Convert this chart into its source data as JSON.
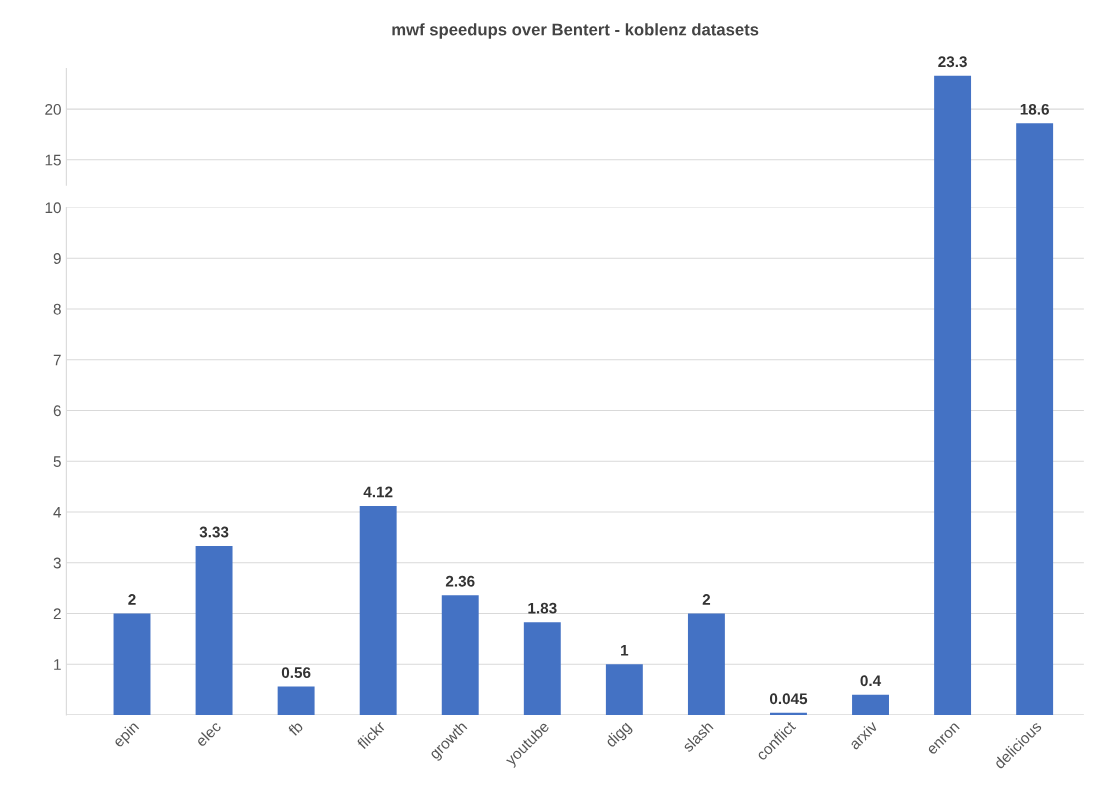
{
  "chart_data": [
    {
      "type": "bar",
      "title": "mwf speedups over Bentert - koblenz datasets",
      "categories": [
        null,
        null,
        null,
        null,
        null,
        null,
        null,
        null,
        null,
        null,
        null,
        null
      ],
      "values": [
        null,
        null,
        null,
        null,
        null,
        null,
        null,
        null,
        null,
        null,
        23.3,
        18.6
      ],
      "value_labels": [
        null,
        null,
        null,
        null,
        null,
        null,
        null,
        null,
        null,
        null,
        "23.3",
        "18.6"
      ],
      "color": "#4472c4",
      "ylim": [
        12.5,
        24
      ],
      "yticks": [
        15,
        20
      ],
      "tick_labels": "y",
      "grid": "y"
    },
    {
      "type": "bar",
      "categories": [
        "epin",
        "elec",
        "fb",
        "flickr",
        "growth",
        "youtube",
        "digg",
        "slash",
        "conflict",
        "arxiv",
        "enron",
        "delicious"
      ],
      "values": [
        2,
        3.33,
        0.56,
        4.12,
        2.36,
        1.83,
        1,
        2,
        0.045,
        0.4,
        null,
        null
      ],
      "value_labels": [
        "2",
        "3.33",
        "0.56",
        "4.12",
        "2.36",
        "1.83",
        "1",
        "2",
        "0.045",
        "0.4",
        null,
        null
      ],
      "color": "#4472c4",
      "ylim": [
        0,
        10
      ],
      "yticks": [
        1,
        2,
        3,
        4,
        5,
        6,
        7,
        8,
        9,
        10
      ],
      "grid": "y"
    }
  ]
}
